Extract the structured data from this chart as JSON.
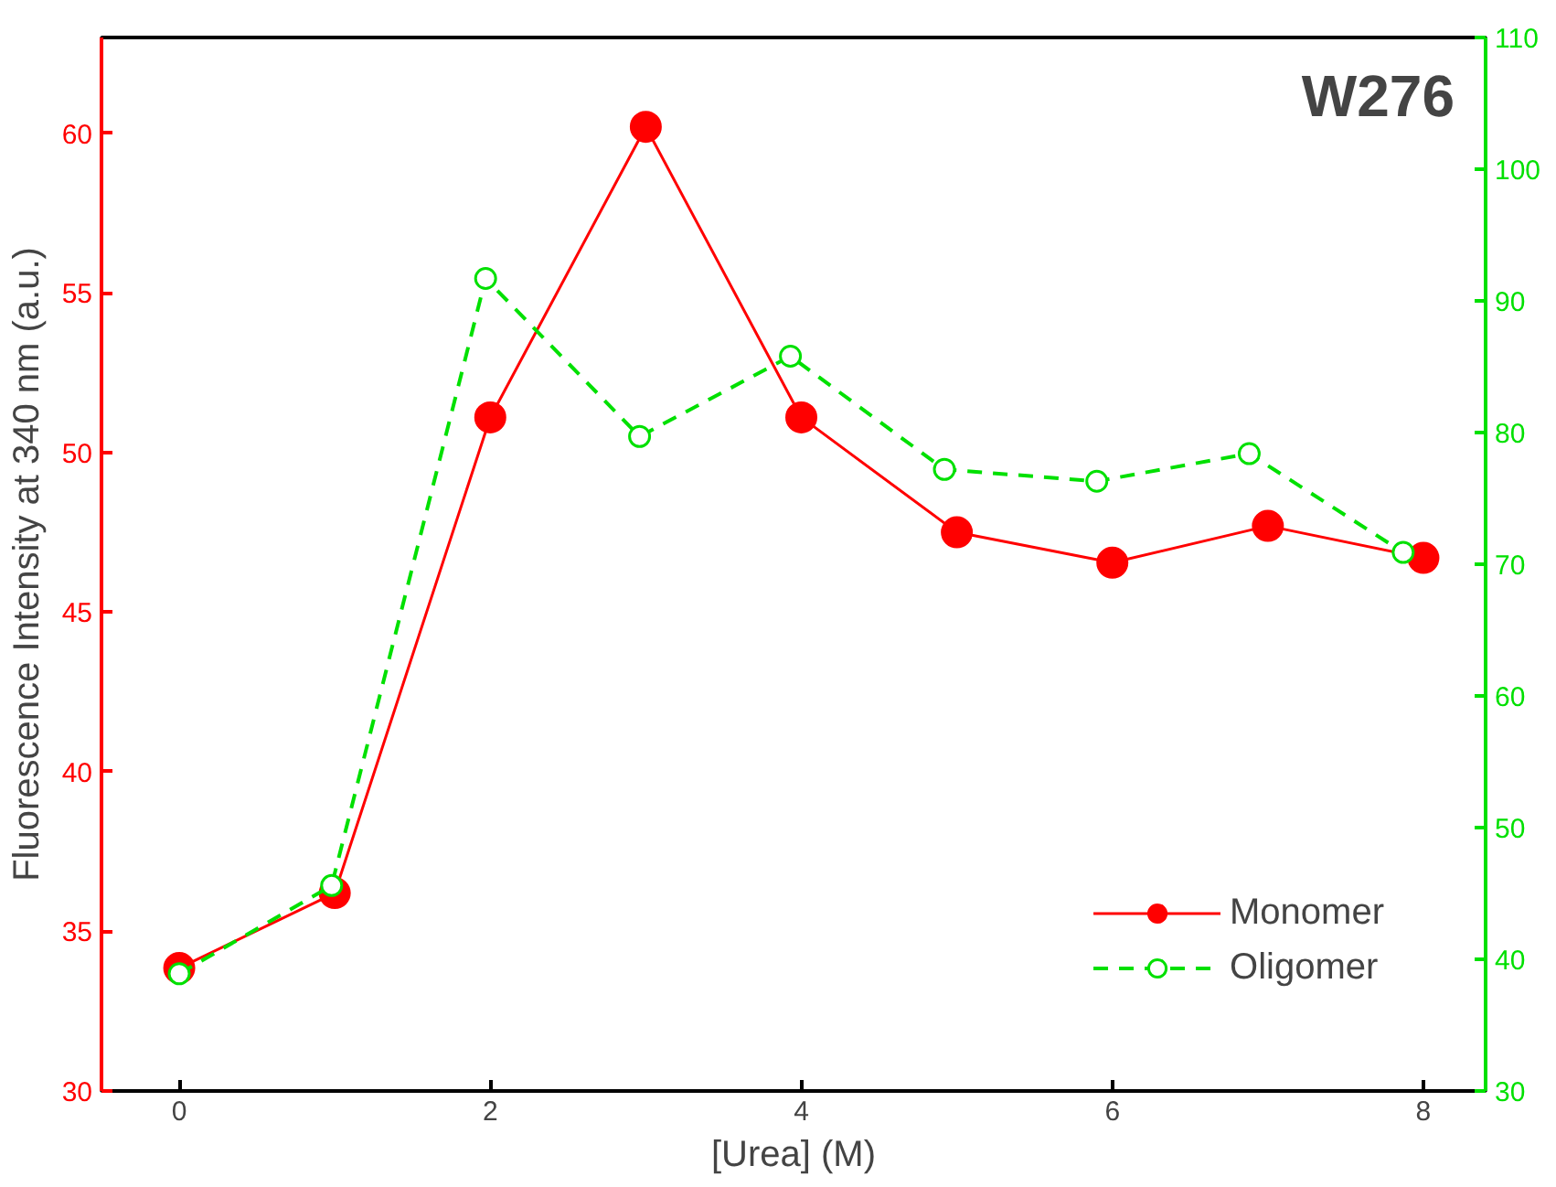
{
  "chart_data": {
    "type": "line",
    "title": "W276",
    "xlabel": "[Urea] (M)",
    "ylabel": "Fluorescence Intensity at 340 nm (a.u.)",
    "xlim": [
      -0.5,
      8.4
    ],
    "xticks": [
      0,
      2,
      4,
      6,
      8
    ],
    "ylim": [
      30,
      63
    ],
    "yticks": [
      30,
      35,
      40,
      45,
      50,
      55,
      60
    ],
    "y2lim": [
      30,
      110
    ],
    "y2ticks": [
      30,
      40,
      50,
      60,
      70,
      80,
      90,
      100,
      110
    ],
    "legend": "bottom right",
    "grid": false,
    "series": [
      {
        "name": "Monomer",
        "color": "#ff0000",
        "marker": "circle",
        "line_style": "solid",
        "x": [
          0,
          1,
          2,
          3,
          4,
          5,
          6,
          7,
          8
        ],
        "values": [
          33.85,
          36.2,
          51.1,
          60.2,
          51.1,
          47.5,
          46.55,
          47.7,
          46.7
        ]
      },
      {
        "name": "Oligomer",
        "color": "#00e000",
        "marker": "circle",
        "line_style": "dashed",
        "axis": "y2",
        "x": [
          0,
          0.98,
          1.97,
          2.96,
          3.93,
          4.92,
          5.9,
          6.88,
          7.87
        ],
        "values": [
          38.9,
          45.6,
          91.7,
          79.7,
          85.8,
          77.2,
          76.3,
          78.4,
          70.9
        ]
      }
    ]
  }
}
